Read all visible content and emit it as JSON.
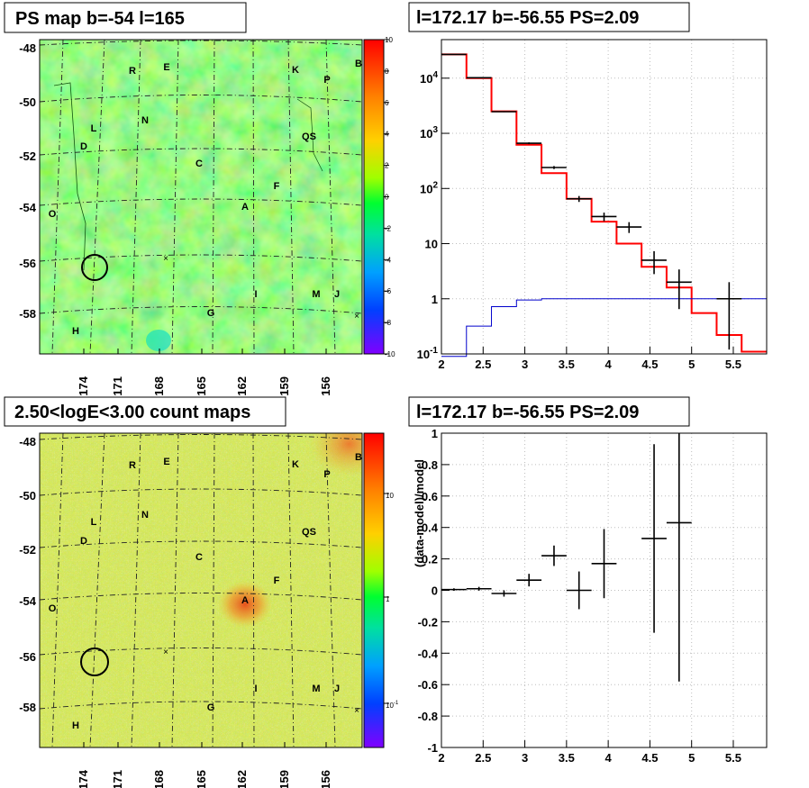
{
  "panels": {
    "ps_map": {
      "title": "PS map b=-54 l=165",
      "lat_ticks": [
        "-48",
        "-50",
        "-52",
        "-54",
        "-56",
        "-58"
      ],
      "lon_ticks": [
        "174",
        "171",
        "168",
        "165",
        "162",
        "159",
        "156"
      ],
      "colorbar_ticks": [
        "10",
        "8",
        "6",
        "4",
        "2",
        "0",
        "-2",
        "-4",
        "-6",
        "-8",
        "-10"
      ],
      "sources": [
        "R",
        "E",
        "K",
        "P",
        "B",
        "N",
        "L",
        "QS",
        "D",
        "C",
        "F",
        "A",
        "O",
        "I",
        "M",
        "J",
        "G",
        "H"
      ]
    },
    "count_map": {
      "title": "2.50<logE<3.00 count maps",
      "lat_ticks": [
        "-48",
        "-50",
        "-52",
        "-54",
        "-56",
        "-58"
      ],
      "lon_ticks": [
        "174",
        "171",
        "168",
        "165",
        "162",
        "159",
        "156"
      ],
      "colorbar_ticks": [
        "10",
        "1"
      ],
      "colorbar_low_tick": "10",
      "colorbar_low_exp": "-1",
      "sources": [
        "R",
        "E",
        "K",
        "P",
        "B",
        "N",
        "L",
        "QS",
        "D",
        "C",
        "F",
        "A",
        "O",
        "I",
        "M",
        "J",
        "G",
        "H"
      ]
    },
    "spectrum": {
      "title": "l=172.17 b=-56.55 PS=2.09",
      "x_ticks": [
        "2",
        "2.5",
        "3",
        "3.5",
        "4",
        "4.5",
        "5",
        "5.5"
      ],
      "y_ticks": [
        {
          "base": "10",
          "exp": "4"
        },
        {
          "base": "10",
          "exp": "3"
        },
        {
          "base": "10",
          "exp": "2"
        },
        {
          "base": "10",
          "exp": ""
        },
        {
          "base": "1",
          "exp": ""
        },
        {
          "base": "10",
          "exp": "-1"
        }
      ]
    },
    "residual": {
      "title": "l=172.17 b=-56.55 PS=2.09",
      "ylabel": "(data-model)/model",
      "x_ticks": [
        "2",
        "2.5",
        "3",
        "3.5",
        "4",
        "4.5",
        "5",
        "5.5"
      ],
      "y_ticks": [
        "1",
        "0.8",
        "0.6",
        "0.4",
        "0.2",
        "0",
        "-0.2",
        "-0.4",
        "-0.6",
        "-0.8",
        "-1"
      ]
    }
  },
  "colors": {
    "model": "#ff0000",
    "background": "#0000cc",
    "data": "#000000",
    "frame": "#000000",
    "grid": "#bdbdbd"
  },
  "chart_data": [
    {
      "type": "heatmap",
      "title": "PS map b=-54 l=165",
      "xlabel": "",
      "ylabel": "",
      "z_range": [
        -10,
        10
      ],
      "description_values": "mostly near 0 (green) across field",
      "marked_source_circle": {
        "l": 172.17,
        "b": -56.55
      }
    },
    {
      "type": "heatmap",
      "title": "2.50<logE<3.00 count maps",
      "xlabel": "",
      "ylabel": "",
      "z_scale": "log",
      "z_range": [
        0.05,
        30
      ],
      "hotspot_source": "A",
      "marked_source_circle": {
        "l": 172.17,
        "b": -56.55
      }
    },
    {
      "type": "line",
      "title": "l=172.17 b=-56.55 PS=2.09",
      "xlabel": "",
      "ylabel": "",
      "x_range": [
        2,
        5.9
      ],
      "y_scale": "log",
      "y_range": [
        0.1,
        50000
      ],
      "grid": true,
      "series": [
        {
          "style": "step",
          "color": "#ff0000",
          "bin_edges": [
            2.0,
            2.3,
            2.6,
            2.9,
            3.2,
            3.5,
            3.8,
            4.1,
            4.4,
            4.7,
            5.0,
            5.3,
            5.6,
            5.9
          ],
          "values": [
            27000,
            10000,
            2500,
            620,
            190,
            65,
            25,
            10,
            3.8,
            1.6,
            0.55,
            0.22,
            0.11
          ]
        },
        {
          "style": "step",
          "color": "#0000cc",
          "bin_edges": [
            2.0,
            2.3,
            2.6,
            2.9,
            3.2,
            3.5,
            3.8,
            4.1,
            4.4,
            4.7,
            5.0,
            5.3,
            5.6,
            5.9
          ],
          "values": [
            0.03,
            0.32,
            0.72,
            0.95,
            1.0,
            1.0,
            1.0,
            1.0,
            1.0,
            1.0,
            1.0,
            1.0,
            1.0
          ]
        },
        {
          "style": "errorbar",
          "color": "#000000",
          "points": [
            {
              "x": 2.15,
              "xerr": 0.15,
              "y": 27000,
              "ylo": 26800,
              "yhi": 27200
            },
            {
              "x": 2.45,
              "xerr": 0.15,
              "y": 10200,
              "ylo": 10100,
              "yhi": 10300
            },
            {
              "x": 2.75,
              "xerr": 0.15,
              "y": 2470,
              "ylo": 2420,
              "yhi": 2520
            },
            {
              "x": 3.05,
              "xerr": 0.15,
              "y": 660,
              "ylo": 635,
              "yhi": 685
            },
            {
              "x": 3.35,
              "xerr": 0.15,
              "y": 240,
              "ylo": 225,
              "yhi": 255
            },
            {
              "x": 3.65,
              "xerr": 0.15,
              "y": 65,
              "ylo": 57,
              "yhi": 73
            },
            {
              "x": 3.95,
              "xerr": 0.15,
              "y": 31,
              "ylo": 25.5,
              "yhi": 36.5
            },
            {
              "x": 4.25,
              "xerr": 0.15,
              "y": 20,
              "ylo": 15.6,
              "yhi": 24.5
            },
            {
              "x": 4.55,
              "xerr": 0.15,
              "y": 5,
              "ylo": 2.8,
              "yhi": 7.3
            },
            {
              "x": 4.85,
              "xerr": 0.15,
              "y": 2,
              "ylo": 0.65,
              "yhi": 3.4
            },
            {
              "x": 5.45,
              "xerr": 0.15,
              "y": 1,
              "ylo": 0.12,
              "yhi": 2.0
            }
          ]
        }
      ]
    },
    {
      "type": "scatter",
      "title": "l=172.17 b=-56.55 PS=2.09",
      "xlabel": "",
      "ylabel": "(data-model)/model",
      "x_range": [
        2,
        5.9
      ],
      "y_range": [
        -1,
        1
      ],
      "grid": true,
      "series": [
        {
          "style": "errorbar",
          "color": "#000000",
          "points": [
            {
              "x": 2.15,
              "xerr": 0.15,
              "y": 0.005,
              "yerr": 0.008
            },
            {
              "x": 2.45,
              "xerr": 0.15,
              "y": 0.01,
              "yerr": 0.012
            },
            {
              "x": 2.75,
              "xerr": 0.15,
              "y": -0.02,
              "yerr": 0.02
            },
            {
              "x": 3.05,
              "xerr": 0.15,
              "y": 0.065,
              "yerr": 0.04
            },
            {
              "x": 3.35,
              "xerr": 0.15,
              "y": 0.22,
              "yerr": 0.065
            },
            {
              "x": 3.65,
              "xerr": 0.15,
              "y": 0.0,
              "yerr": 0.12
            },
            {
              "x": 3.95,
              "xerr": 0.15,
              "y": 0.17,
              "yerr": 0.22
            },
            {
              "x": 4.55,
              "xerr": 0.15,
              "y": 0.33,
              "yerr": 0.6
            },
            {
              "x": 4.85,
              "xerr": 0.15,
              "y": 0.43,
              "yerr": 1.01
            }
          ]
        }
      ]
    }
  ]
}
